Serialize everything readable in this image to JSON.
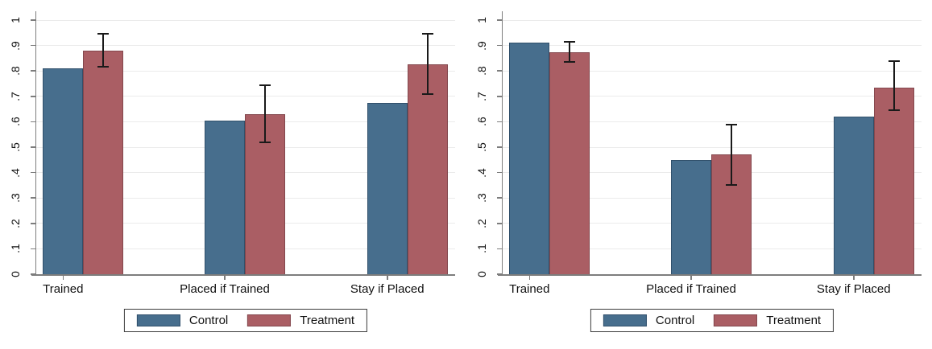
{
  "figure": {
    "background": "#ffffff",
    "panels": 2
  },
  "style": {
    "grid_color": "#ebebeb",
    "axis_color": "#7d7d7d",
    "text_color": "#111111",
    "error_bar_color": "#1a1a1a",
    "legend_border_color": "#3c3c3c"
  },
  "chart_data": [
    {
      "type": "bar",
      "panel": "left",
      "title": "",
      "xlabel": "",
      "ylabel": "",
      "categories": [
        "Trained",
        "Placed if Trained",
        "Stay if Placed"
      ],
      "series": [
        {
          "name": "Control",
          "color": "#476e8d",
          "border_color": "#31506b",
          "values": [
            0.81,
            0.605,
            0.675
          ]
        },
        {
          "name": "Treatment",
          "color": "#aa5e64",
          "border_color": "#83474d",
          "values": [
            0.88,
            0.63,
            0.825
          ],
          "ci_low": [
            0.815,
            0.52,
            0.71
          ],
          "ci_high": [
            0.945,
            0.745,
            0.945
          ]
        }
      ],
      "ylim": [
        0,
        1
      ],
      "ytick_values": [
        0,
        0.1,
        0.2,
        0.3,
        0.4,
        0.5,
        0.6,
        0.7,
        0.8,
        0.9,
        1
      ],
      "ytick_labels": [
        "0",
        ".1",
        ".2",
        ".3",
        ".4",
        ".5",
        ".6",
        ".7",
        ".8",
        ".9",
        "1"
      ],
      "grid": true,
      "legend_position": "bottom",
      "legend": [
        "Control",
        "Treatment"
      ]
    },
    {
      "type": "bar",
      "panel": "right",
      "title": "",
      "xlabel": "",
      "ylabel": "",
      "categories": [
        "Trained",
        "Placed if Trained",
        "Stay if Placed"
      ],
      "series": [
        {
          "name": "Control",
          "color": "#476e8d",
          "border_color": "#31506b",
          "values": [
            0.91,
            0.45,
            0.62
          ]
        },
        {
          "name": "Treatment",
          "color": "#aa5e64",
          "border_color": "#83474d",
          "values": [
            0.875,
            0.47,
            0.735
          ],
          "ci_low": [
            0.835,
            0.35,
            0.645
          ],
          "ci_high": [
            0.915,
            0.59,
            0.84
          ]
        }
      ],
      "ylim": [
        0,
        1
      ],
      "ytick_values": [
        0,
        0.1,
        0.2,
        0.3,
        0.4,
        0.5,
        0.6,
        0.7,
        0.8,
        0.9,
        1
      ],
      "ytick_labels": [
        "0",
        ".1",
        ".2",
        ".3",
        ".4",
        ".5",
        ".6",
        ".7",
        ".8",
        ".9",
        "1"
      ],
      "grid": true,
      "legend_position": "bottom",
      "legend": [
        "Control",
        "Treatment"
      ]
    }
  ]
}
